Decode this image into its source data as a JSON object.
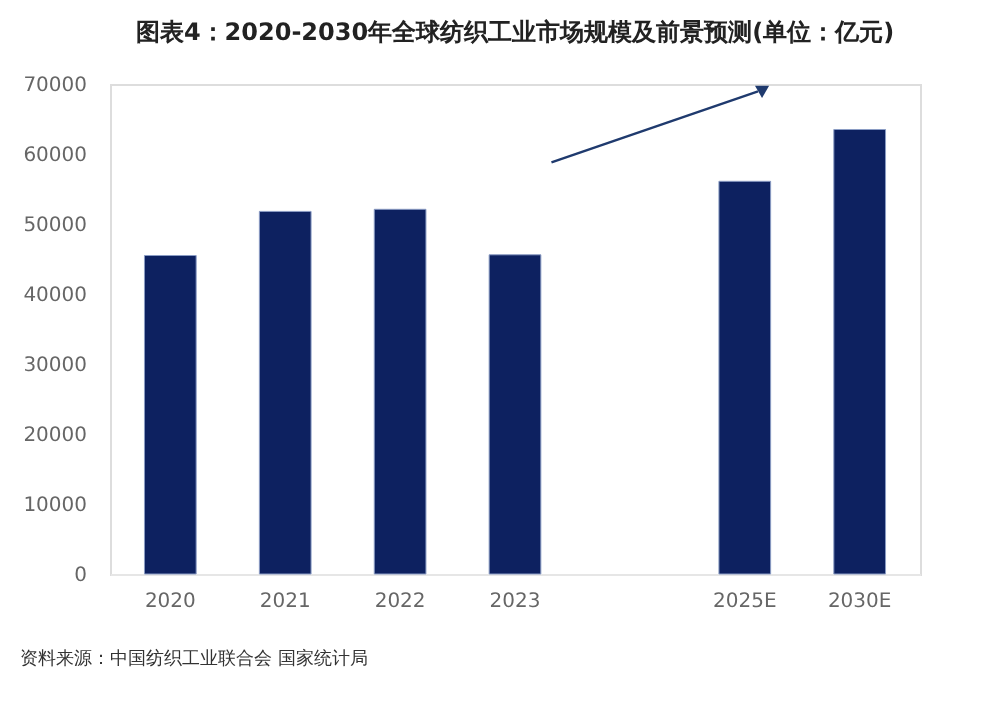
{
  "chart_data": {
    "type": "bar",
    "title": "图表4：2020-2030年全球纺织工业市场规模及前景预测(单位：亿元)",
    "categories": [
      "2020",
      "2021",
      "2022",
      "2023",
      null,
      "2025E",
      "2030E"
    ],
    "values": [
      45500,
      51800,
      52100,
      45600,
      null,
      56100,
      63500
    ],
    "color": "#0d2160",
    "ylim": [
      0,
      70000
    ],
    "yticks": [
      0,
      10000,
      20000,
      30000,
      40000,
      50000,
      60000,
      70000
    ],
    "grid": false,
    "annotations": [
      "资料来源：中国纺织工业联合会 国家统计局"
    ]
  }
}
